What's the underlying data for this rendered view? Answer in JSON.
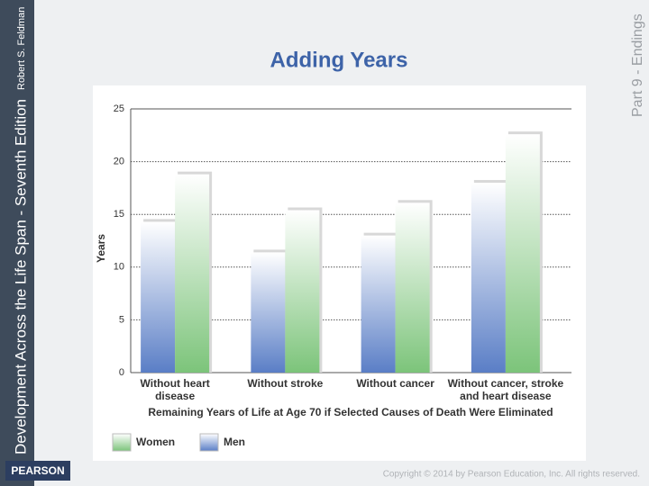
{
  "slide": {
    "side_title": "Development Across the Life Span - Seventh Edition",
    "author": "Robert S. Feldman",
    "part": "Part 9 - Endings",
    "logo": "PEARSON",
    "copyright": "Copyright © 2014 by Pearson Education, Inc. All rights reserved."
  },
  "chart_data": {
    "type": "bar",
    "title": "Adding Years",
    "ylabel": "Years",
    "xlabel": "Remaining Years of Life at  Age 70 if Selected Causes of Death Were Eliminated",
    "categories": [
      "Without heart disease",
      "Without stroke",
      "Without cancer",
      "Without cancer, stroke and heart disease"
    ],
    "series": [
      {
        "name": "Women",
        "color": "#7cc47a",
        "values": [
          18.8,
          15.4,
          16.1,
          22.6
        ]
      },
      {
        "name": "Men",
        "color": "#5a7ec6",
        "values": [
          14.3,
          11.4,
          13,
          18
        ]
      }
    ],
    "ylim": [
      0,
      25
    ],
    "yticks": [
      0,
      5,
      10,
      15,
      20,
      25
    ],
    "grid": true
  }
}
